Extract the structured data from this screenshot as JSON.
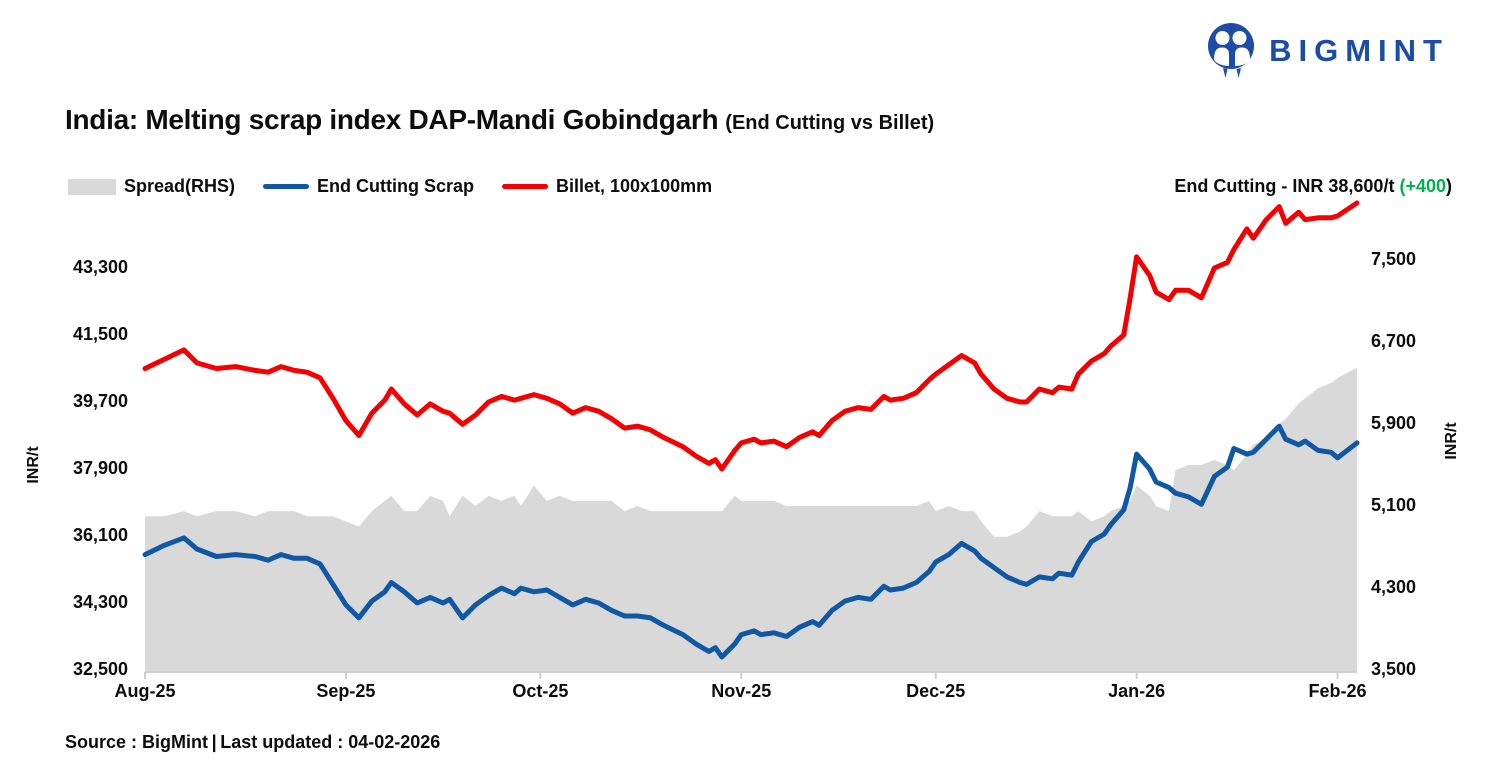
{
  "brand": {
    "name": "BIGMINT"
  },
  "title": {
    "main": "India: Melting scrap index DAP-Mandi Gobindgarh",
    "sub": "(End Cutting vs Billet)"
  },
  "legend": [
    {
      "label": "Spread(RHS)",
      "color": "#d9d9d9",
      "type": "area"
    },
    {
      "label": "End Cutting Scrap",
      "color": "#1057a4",
      "type": "line"
    },
    {
      "label": "Billet, 100x100mm",
      "color": "#f40000",
      "type": "line"
    }
  ],
  "annotation": {
    "label": "End Cutting - INR 38,600/t ",
    "change": "(+400",
    "paren": ")",
    "change_color": "#00b050"
  },
  "footer": {
    "text": "Source : BigMint | Last updated : 04-02-2026"
  },
  "chart_data": {
    "type": "line",
    "title": "India: Melting scrap index DAP-Mandi Gobindgarh (End Cutting vs Billet)",
    "grid": false,
    "legend_position": "top-left",
    "x_axis": {
      "tick_labels": [
        "Aug-25",
        "Sep-25",
        "Oct-25",
        "Nov-25",
        "Dec-25",
        "Jan-26",
        "Feb-26"
      ],
      "tick_days": [
        0,
        31,
        61,
        92,
        122,
        153,
        184
      ],
      "total_days": 187
    },
    "left_axis": {
      "title": "INR/t",
      "ticks": [
        43300,
        41500,
        39700,
        37900,
        36100,
        34300,
        32500
      ],
      "range": [
        32500,
        43300
      ]
    },
    "right_axis": {
      "title": "INR/t",
      "ticks": [
        7500,
        6700,
        5900,
        5100,
        4300,
        3500
      ],
      "range": [
        3500,
        7500
      ]
    },
    "days": [
      0,
      3,
      6,
      8,
      11,
      14,
      17,
      19,
      21,
      23,
      25,
      27,
      29,
      31,
      33,
      35,
      37,
      38,
      40,
      42,
      44,
      46,
      47,
      49,
      51,
      53,
      55,
      57,
      58,
      60,
      62,
      64,
      66,
      68,
      70,
      72,
      74,
      76,
      78,
      80,
      83,
      85,
      87,
      88,
      89,
      91,
      92,
      94,
      95,
      97,
      99,
      101,
      103,
      104,
      106,
      108,
      110,
      112,
      114,
      115,
      117,
      119,
      121,
      122,
      124,
      126,
      128,
      129,
      131,
      133,
      135,
      136,
      138,
      140,
      141,
      143,
      144,
      146,
      148,
      149,
      151,
      152,
      153,
      155,
      156,
      158,
      159,
      161,
      163,
      165,
      167,
      168,
      170,
      171,
      173,
      175,
      176,
      178,
      179,
      181,
      183,
      184,
      187
    ],
    "series": [
      {
        "name": "Spread(RHS)",
        "axis": "right",
        "type": "area",
        "color": "#d9d9d9",
        "values": [
          5000,
          5000,
          5050,
          5000,
          5050,
          5050,
          5000,
          5050,
          5050,
          5050,
          5000,
          5000,
          5000,
          4950,
          4900,
          5050,
          5150,
          5200,
          5050,
          5050,
          5200,
          5150,
          5000,
          5200,
          5100,
          5200,
          5150,
          5200,
          5100,
          5300,
          5150,
          5200,
          5150,
          5150,
          5150,
          5150,
          5050,
          5100,
          5050,
          5050,
          5050,
          5050,
          5050,
          5050,
          5050,
          5200,
          5150,
          5150,
          5150,
          5150,
          5100,
          5100,
          5100,
          5100,
          5100,
          5100,
          5100,
          5100,
          5100,
          5100,
          5100,
          5100,
          5150,
          5050,
          5100,
          5050,
          5050,
          4950,
          4800,
          4800,
          4850,
          4900,
          5050,
          5000,
          5000,
          5000,
          5050,
          4950,
          5000,
          5050,
          5100,
          5150,
          5300,
          5200,
          5100,
          5050,
          5450,
          5500,
          5500,
          5550,
          5500,
          5450,
          5600,
          5700,
          5750,
          5900,
          5950,
          6100,
          6150,
          6250,
          6300,
          6350,
          6450
        ]
      },
      {
        "name": "End Cutting Scrap",
        "axis": "left",
        "type": "line",
        "color": "#1057a4",
        "values": [
          35600,
          35850,
          36050,
          35750,
          35550,
          35600,
          35550,
          35450,
          35600,
          35500,
          35500,
          35350,
          34800,
          34250,
          33900,
          34350,
          34600,
          34850,
          34600,
          34300,
          34450,
          34300,
          34400,
          33900,
          34250,
          34500,
          34700,
          34550,
          34700,
          34600,
          34650,
          34450,
          34250,
          34400,
          34300,
          34100,
          33950,
          33950,
          33900,
          33700,
          33450,
          33200,
          33000,
          33100,
          32850,
          33200,
          33450,
          33550,
          33450,
          33500,
          33400,
          33650,
          33800,
          33700,
          34100,
          34350,
          34450,
          34400,
          34750,
          34650,
          34700,
          34850,
          35150,
          35400,
          35600,
          35900,
          35700,
          35500,
          35250,
          35000,
          34850,
          34800,
          35000,
          34950,
          35100,
          35050,
          35400,
          35950,
          36150,
          36400,
          36800,
          37400,
          38300,
          37900,
          37550,
          37400,
          37250,
          37150,
          36950,
          37700,
          37950,
          38450,
          38300,
          38350,
          38700,
          39050,
          38700,
          38550,
          38650,
          38400,
          38350,
          38200,
          38600
        ]
      },
      {
        "name": "Billet, 100x100mm",
        "axis": "left",
        "type": "line",
        "color": "#f40000",
        "values": [
          40600,
          40850,
          41100,
          40750,
          40600,
          40650,
          40550,
          40500,
          40650,
          40550,
          40500,
          40350,
          39800,
          39200,
          38800,
          39400,
          39750,
          40050,
          39650,
          39350,
          39650,
          39450,
          39400,
          39100,
          39350,
          39700,
          39850,
          39750,
          39800,
          39900,
          39800,
          39650,
          39400,
          39550,
          39450,
          39250,
          39000,
          39050,
          38950,
          38750,
          38500,
          38250,
          38050,
          38150,
          37900,
          38400,
          38600,
          38700,
          38600,
          38650,
          38500,
          38750,
          38900,
          38800,
          39200,
          39450,
          39550,
          39500,
          39850,
          39750,
          39800,
          39950,
          40300,
          40450,
          40700,
          40950,
          40750,
          40450,
          40050,
          39800,
          39700,
          39700,
          40050,
          39950,
          40100,
          40050,
          40450,
          40800,
          41000,
          41200,
          41500,
          42500,
          43600,
          43100,
          42650,
          42450,
          42700,
          42700,
          42500,
          43300,
          43450,
          43800,
          44350,
          44100,
          44600,
          44950,
          44500,
          44800,
          44600,
          44650,
          44650,
          44700,
          45050
        ]
      }
    ],
    "last_point": {
      "end_cutting_scrap": 38600,
      "change": 400,
      "billet": 45050
    }
  }
}
